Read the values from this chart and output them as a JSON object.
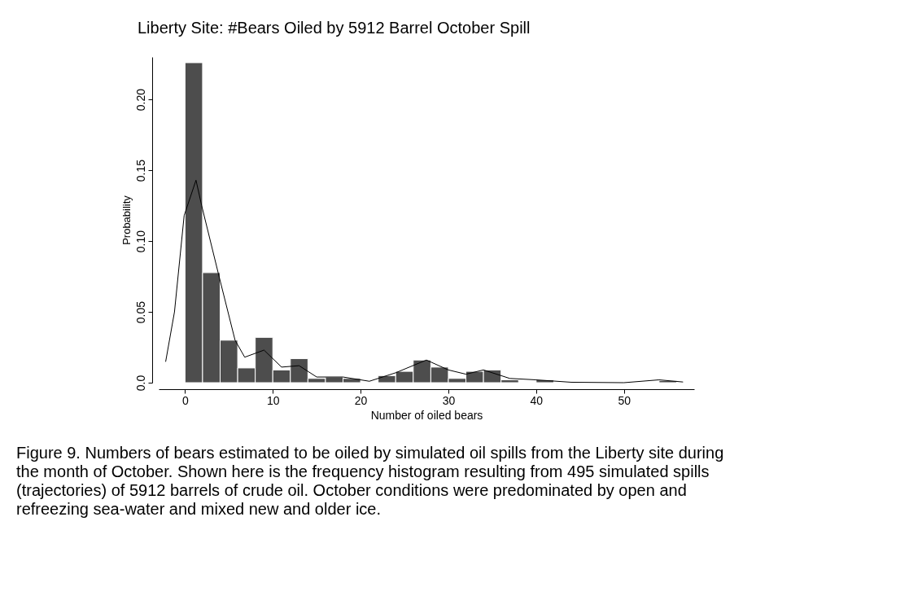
{
  "chart_data": {
    "type": "histogram",
    "title": "Liberty Site: #Bears Oiled by 5912 Barrel October Spill",
    "xlabel": "Number of oiled bears",
    "ylabel": "Probability",
    "bins": [
      0,
      2,
      4,
      6,
      8,
      10,
      12,
      14,
      16,
      18,
      20,
      22,
      24,
      26,
      28,
      30,
      32,
      34,
      36,
      38,
      40,
      42,
      44,
      46,
      48,
      50,
      52,
      54,
      56
    ],
    "values": [
      0.226,
      0.0777,
      0.03,
      0.0104,
      0.032,
      0.009,
      0.017,
      0.003,
      0.004,
      0.003,
      0,
      0.005,
      0.008,
      0.016,
      0.011,
      0.003,
      0.008,
      0.009,
      0.002,
      0,
      0.002,
      0,
      0,
      0,
      0,
      0,
      0,
      0.0015
    ],
    "color": "#4d4d4d",
    "series": [
      {
        "type": "line",
        "color": "#000000",
        "x": [
          -2.2,
          -1.2,
          -0.1,
          1.25,
          1.9,
          3.8,
          5.7,
          6.8,
          9,
          11,
          13,
          15,
          18,
          21,
          24,
          27.5,
          30,
          32,
          34,
          37,
          40,
          44,
          50,
          54,
          56.7
        ],
        "values": [
          0.015,
          0.05,
          0.118,
          0.143,
          0.125,
          0.077,
          0.03,
          0.018,
          0.023,
          0.011,
          0.012,
          0.004,
          0.004,
          0.001,
          0.007,
          0.016,
          0.009,
          0.006,
          0.009,
          0.003,
          0.002,
          0.0003,
          0.0,
          0.002,
          0.0005
        ]
      }
    ],
    "xlim": [
      -3,
      58
    ],
    "ylim": [
      0,
      0.23
    ],
    "xticks": [
      0,
      10,
      20,
      30,
      40,
      50
    ],
    "yticks": [
      {
        "value": 0,
        "label": "0.0"
      },
      0.05,
      {
        "value": 0.1,
        "label": "0.10"
      },
      0.15,
      {
        "value": 0.2,
        "label": "0.20"
      }
    ],
    "grid": false,
    "legend": false,
    "annotations": [
      "Figure 9.  Numbers of bears estimated to be oiled by simulated oil spills from the Liberty site during\nthe month of October.  Shown here is the frequency histogram resulting from 495 simulated spills\n(trajectories) of 5912 barrels of crude oil.  October conditions were predominated by open and\nrefreezing sea-water and mixed new and older ice."
    ]
  }
}
